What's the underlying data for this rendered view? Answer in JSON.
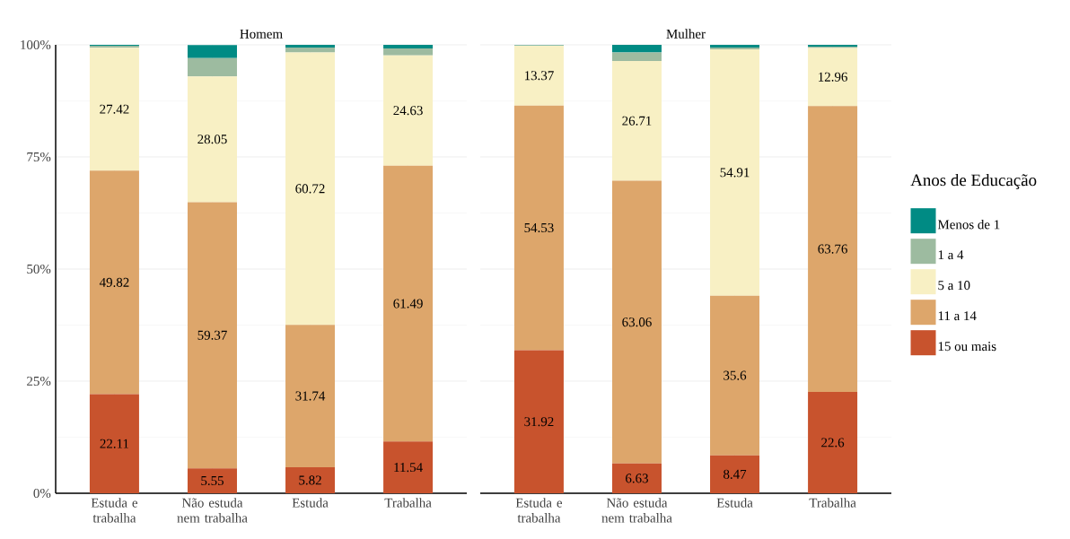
{
  "chart_data": [
    {
      "type": "bar",
      "title": "Homem",
      "stacked": true,
      "grid": true,
      "categories": [
        "Estuda e trabalha",
        "Não estuda nem trabalha",
        "Estuda",
        "Trabalha"
      ],
      "ylim": [
        0,
        100
      ],
      "yticks": [
        {
          "value": 0,
          "label": "0%"
        },
        {
          "value": 25,
          "label": "25%"
        },
        {
          "value": 50,
          "label": "50%"
        },
        {
          "value": 75,
          "label": "75%"
        },
        {
          "value": 100,
          "label": "100%"
        }
      ],
      "series": [
        {
          "color": "#c8532d",
          "values": [
            22.11,
            5.55,
            5.82,
            11.54
          ],
          "value_labels": [
            "22.11",
            "5.55",
            "5.82",
            "11.54"
          ]
        },
        {
          "color": "#dda66b",
          "values": [
            49.82,
            59.37,
            31.74,
            61.49
          ],
          "value_labels": [
            "49.82",
            "59.37",
            "31.74",
            "61.49"
          ]
        },
        {
          "color": "#f8f0c4",
          "values": [
            27.42,
            28.05,
            60.72,
            24.63
          ],
          "value_labels": [
            "27.42",
            "28.05",
            "60.72",
            "24.63"
          ]
        },
        {
          "color": "#9dbba0",
          "values": [
            0.45,
            4.1,
            1.12,
            1.54
          ]
        },
        {
          "color": "#008b84",
          "values": [
            0.2,
            2.9,
            0.6,
            0.8
          ]
        }
      ]
    },
    {
      "type": "bar",
      "title": "Mulher",
      "stacked": true,
      "grid": true,
      "tick_labels": "x",
      "legend": "right",
      "legend_title": "Anos de Educação",
      "categories": [
        "Estuda e trabalha",
        "Não estuda nem trabalha",
        "Estuda",
        "Trabalha"
      ],
      "ylim": [
        0,
        100
      ],
      "yticks": [
        {
          "value": 0,
          "label": null
        },
        {
          "value": 25,
          "label": null
        },
        {
          "value": 50,
          "label": null
        },
        {
          "value": 75,
          "label": null
        },
        {
          "value": 100,
          "label": null
        }
      ],
      "series": [
        {
          "name": "15 ou mais",
          "color": "#c8532d",
          "values": [
            31.92,
            6.63,
            8.47,
            22.6
          ],
          "value_labels": [
            "31.92",
            "6.63",
            "8.47",
            "22.6"
          ]
        },
        {
          "name": "11 a 14",
          "color": "#dda66b",
          "values": [
            54.53,
            63.06,
            35.6,
            63.76
          ],
          "value_labels": [
            "54.53",
            "63.06",
            "35.6",
            "63.76"
          ]
        },
        {
          "name": "5 a 10",
          "color": "#f8f0c4",
          "values": [
            13.37,
            26.71,
            54.91,
            12.96
          ],
          "value_labels": [
            "13.37",
            "26.71",
            "54.91",
            "12.96"
          ]
        },
        {
          "name": "1 a 4",
          "color": "#9dbba0",
          "values": [
            0.08,
            1.9,
            0.42,
            0.28
          ]
        },
        {
          "name": "Menos de 1",
          "color": "#008b84",
          "values": [
            0.1,
            1.7,
            0.6,
            0.4
          ]
        }
      ]
    }
  ]
}
